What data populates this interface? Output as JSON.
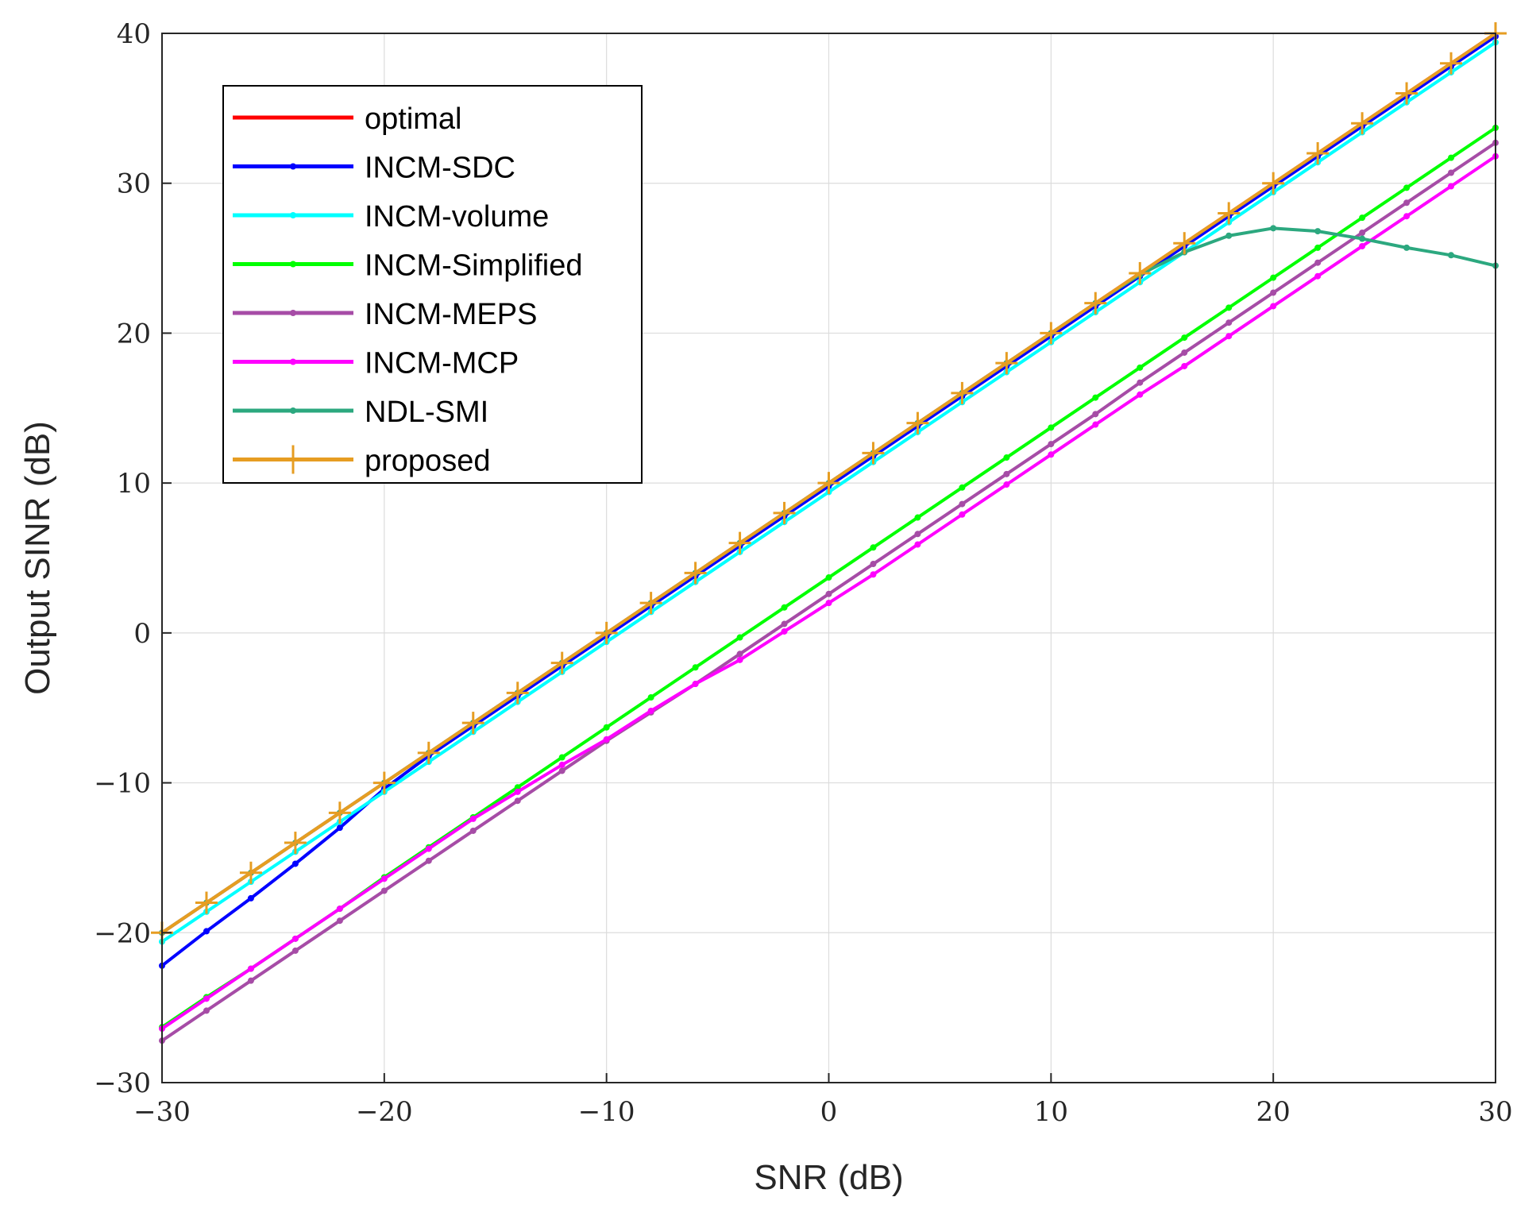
{
  "chart_data": {
    "type": "line",
    "title": "",
    "xlabel": "SNR (dB)",
    "ylabel": "Output SINR (dB)",
    "xlim": [
      -30,
      30
    ],
    "ylim": [
      -30,
      40
    ],
    "xticks": [
      -30,
      -20,
      -10,
      0,
      10,
      20,
      30
    ],
    "xtick_labels": [
      "−30",
      "−20",
      "−10",
      "0",
      "10",
      "20",
      "30"
    ],
    "yticks": [
      -30,
      -20,
      -10,
      0,
      10,
      20,
      30,
      40
    ],
    "ytick_labels": [
      "−30",
      "−20",
      "−10",
      "0",
      "10",
      "20",
      "30",
      "40"
    ],
    "grid": true,
    "legend_position": "top-left",
    "series": [
      {
        "name": "optimal",
        "color": "#ff0000",
        "marker": "none",
        "x": [
          -30,
          30
        ],
        "y": [
          -20,
          40
        ]
      },
      {
        "name": "INCM-SDC",
        "color": "#0000ff",
        "marker": "dot",
        "x": [
          -30,
          -28,
          -26,
          -24,
          -22,
          -20,
          -18,
          -16,
          -14,
          -12,
          -10,
          -8,
          -6,
          -4,
          -2,
          0,
          2,
          4,
          6,
          8,
          10,
          12,
          14,
          16,
          18,
          20,
          22,
          24,
          26,
          28,
          30
        ],
        "y": [
          -22.2,
          -19.9,
          -17.7,
          -15.4,
          -13.0,
          -10.4,
          -8.2,
          -6.2,
          -4.2,
          -2.2,
          -0.2,
          1.8,
          3.8,
          5.8,
          7.8,
          9.8,
          11.8,
          13.8,
          15.8,
          17.8,
          19.8,
          21.8,
          23.8,
          25.8,
          27.8,
          29.8,
          31.8,
          33.8,
          35.8,
          37.8,
          39.8
        ]
      },
      {
        "name": "INCM-volume",
        "color": "#00ffff",
        "marker": "dot",
        "x": [
          -30,
          -28,
          -26,
          -24,
          -22,
          -20,
          -18,
          -16,
          -14,
          -12,
          -10,
          -8,
          -6,
          -4,
          -2,
          0,
          2,
          4,
          6,
          8,
          10,
          12,
          14,
          16,
          18,
          20,
          22,
          24,
          26,
          28,
          30
        ],
        "y": [
          -20.6,
          -18.6,
          -16.6,
          -14.6,
          -12.6,
          -10.6,
          -8.6,
          -6.6,
          -4.6,
          -2.6,
          -0.6,
          1.4,
          3.4,
          5.4,
          7.4,
          9.4,
          11.4,
          13.4,
          15.4,
          17.4,
          19.4,
          21.4,
          23.4,
          25.4,
          27.4,
          29.4,
          31.4,
          33.4,
          35.4,
          37.4,
          39.4
        ]
      },
      {
        "name": "INCM-Simplified",
        "color": "#00ff00",
        "marker": "dot",
        "x": [
          -30,
          -28,
          -26,
          -24,
          -22,
          -20,
          -18,
          -16,
          -14,
          -12,
          -10,
          -8,
          -6,
          -4,
          -2,
          0,
          2,
          4,
          6,
          8,
          10,
          12,
          14,
          16,
          18,
          20,
          22,
          24,
          26,
          28,
          30
        ],
        "y": [
          -26.3,
          -24.3,
          -22.4,
          -20.4,
          -18.4,
          -16.3,
          -14.3,
          -12.3,
          -10.3,
          -8.3,
          -6.3,
          -4.3,
          -2.3,
          -0.3,
          1.7,
          3.7,
          5.7,
          7.7,
          9.7,
          11.7,
          13.7,
          15.7,
          17.7,
          19.7,
          21.7,
          23.7,
          25.7,
          27.7,
          29.7,
          31.7,
          33.7
        ]
      },
      {
        "name": "INCM-MEPS",
        "color": "#a64ca6",
        "marker": "dot",
        "x": [
          -30,
          -28,
          -26,
          -24,
          -22,
          -20,
          -18,
          -16,
          -14,
          -12,
          -10,
          -8,
          -6,
          -4,
          -2,
          0,
          2,
          4,
          6,
          8,
          10,
          12,
          14,
          16,
          18,
          20,
          22,
          24,
          26,
          28,
          30
        ],
        "y": [
          -27.2,
          -25.2,
          -23.2,
          -21.2,
          -19.2,
          -17.2,
          -15.2,
          -13.2,
          -11.2,
          -9.2,
          -7.2,
          -5.3,
          -3.4,
          -1.4,
          0.6,
          2.6,
          4.6,
          6.6,
          8.6,
          10.6,
          12.6,
          14.6,
          16.7,
          18.7,
          20.7,
          22.7,
          24.7,
          26.7,
          28.7,
          30.7,
          32.7
        ]
      },
      {
        "name": "INCM-MCP",
        "color": "#ff00ff",
        "marker": "dot",
        "x": [
          -30,
          -28,
          -26,
          -24,
          -22,
          -20,
          -18,
          -16,
          -14,
          -12,
          -10,
          -8,
          -6,
          -4,
          -2,
          0,
          2,
          4,
          6,
          8,
          10,
          12,
          14,
          16,
          18,
          20,
          22,
          24,
          26,
          28,
          30
        ],
        "y": [
          -26.4,
          -24.4,
          -22.4,
          -20.4,
          -18.4,
          -16.4,
          -14.4,
          -12.4,
          -10.6,
          -8.8,
          -7.1,
          -5.2,
          -3.4,
          -1.8,
          0.1,
          2.0,
          3.9,
          5.9,
          7.9,
          9.9,
          11.9,
          13.9,
          15.9,
          17.8,
          19.8,
          21.8,
          23.8,
          25.8,
          27.8,
          29.8,
          31.8
        ]
      },
      {
        "name": "NDL-SMI",
        "color": "#2ca87f",
        "marker": "dot",
        "x": [
          -30,
          -28,
          -26,
          -24,
          -22,
          -20,
          -18,
          -16,
          -14,
          -12,
          -10,
          -8,
          -6,
          -4,
          -2,
          0,
          2,
          4,
          6,
          8,
          10,
          12,
          14,
          16,
          18,
          20,
          22,
          24,
          26,
          28,
          30
        ],
        "y": [
          -20.0,
          -18.0,
          -16.0,
          -14.0,
          -12.0,
          -10.0,
          -8.0,
          -6.0,
          -4.0,
          -2.0,
          0.0,
          2.0,
          4.0,
          6.0,
          8.0,
          10.0,
          12.0,
          14.0,
          16.0,
          18.0,
          20.0,
          22.0,
          23.9,
          25.4,
          26.5,
          27.0,
          26.8,
          26.3,
          25.7,
          25.2,
          24.5
        ]
      },
      {
        "name": "proposed",
        "color": "#e69d22",
        "marker": "plus",
        "x": [
          -30,
          -28,
          -26,
          -24,
          -22,
          -20,
          -18,
          -16,
          -14,
          -12,
          -10,
          -8,
          -6,
          -4,
          -2,
          0,
          2,
          4,
          6,
          8,
          10,
          12,
          14,
          16,
          18,
          20,
          22,
          24,
          26,
          28,
          30
        ],
        "y": [
          -20,
          -18,
          -16,
          -14,
          -12,
          -10,
          -8,
          -6,
          -4,
          -2,
          0,
          2,
          4,
          6,
          8,
          10,
          12,
          14,
          16,
          18,
          20,
          22,
          24,
          26,
          28,
          30,
          32,
          34,
          36,
          38,
          40
        ]
      }
    ]
  }
}
